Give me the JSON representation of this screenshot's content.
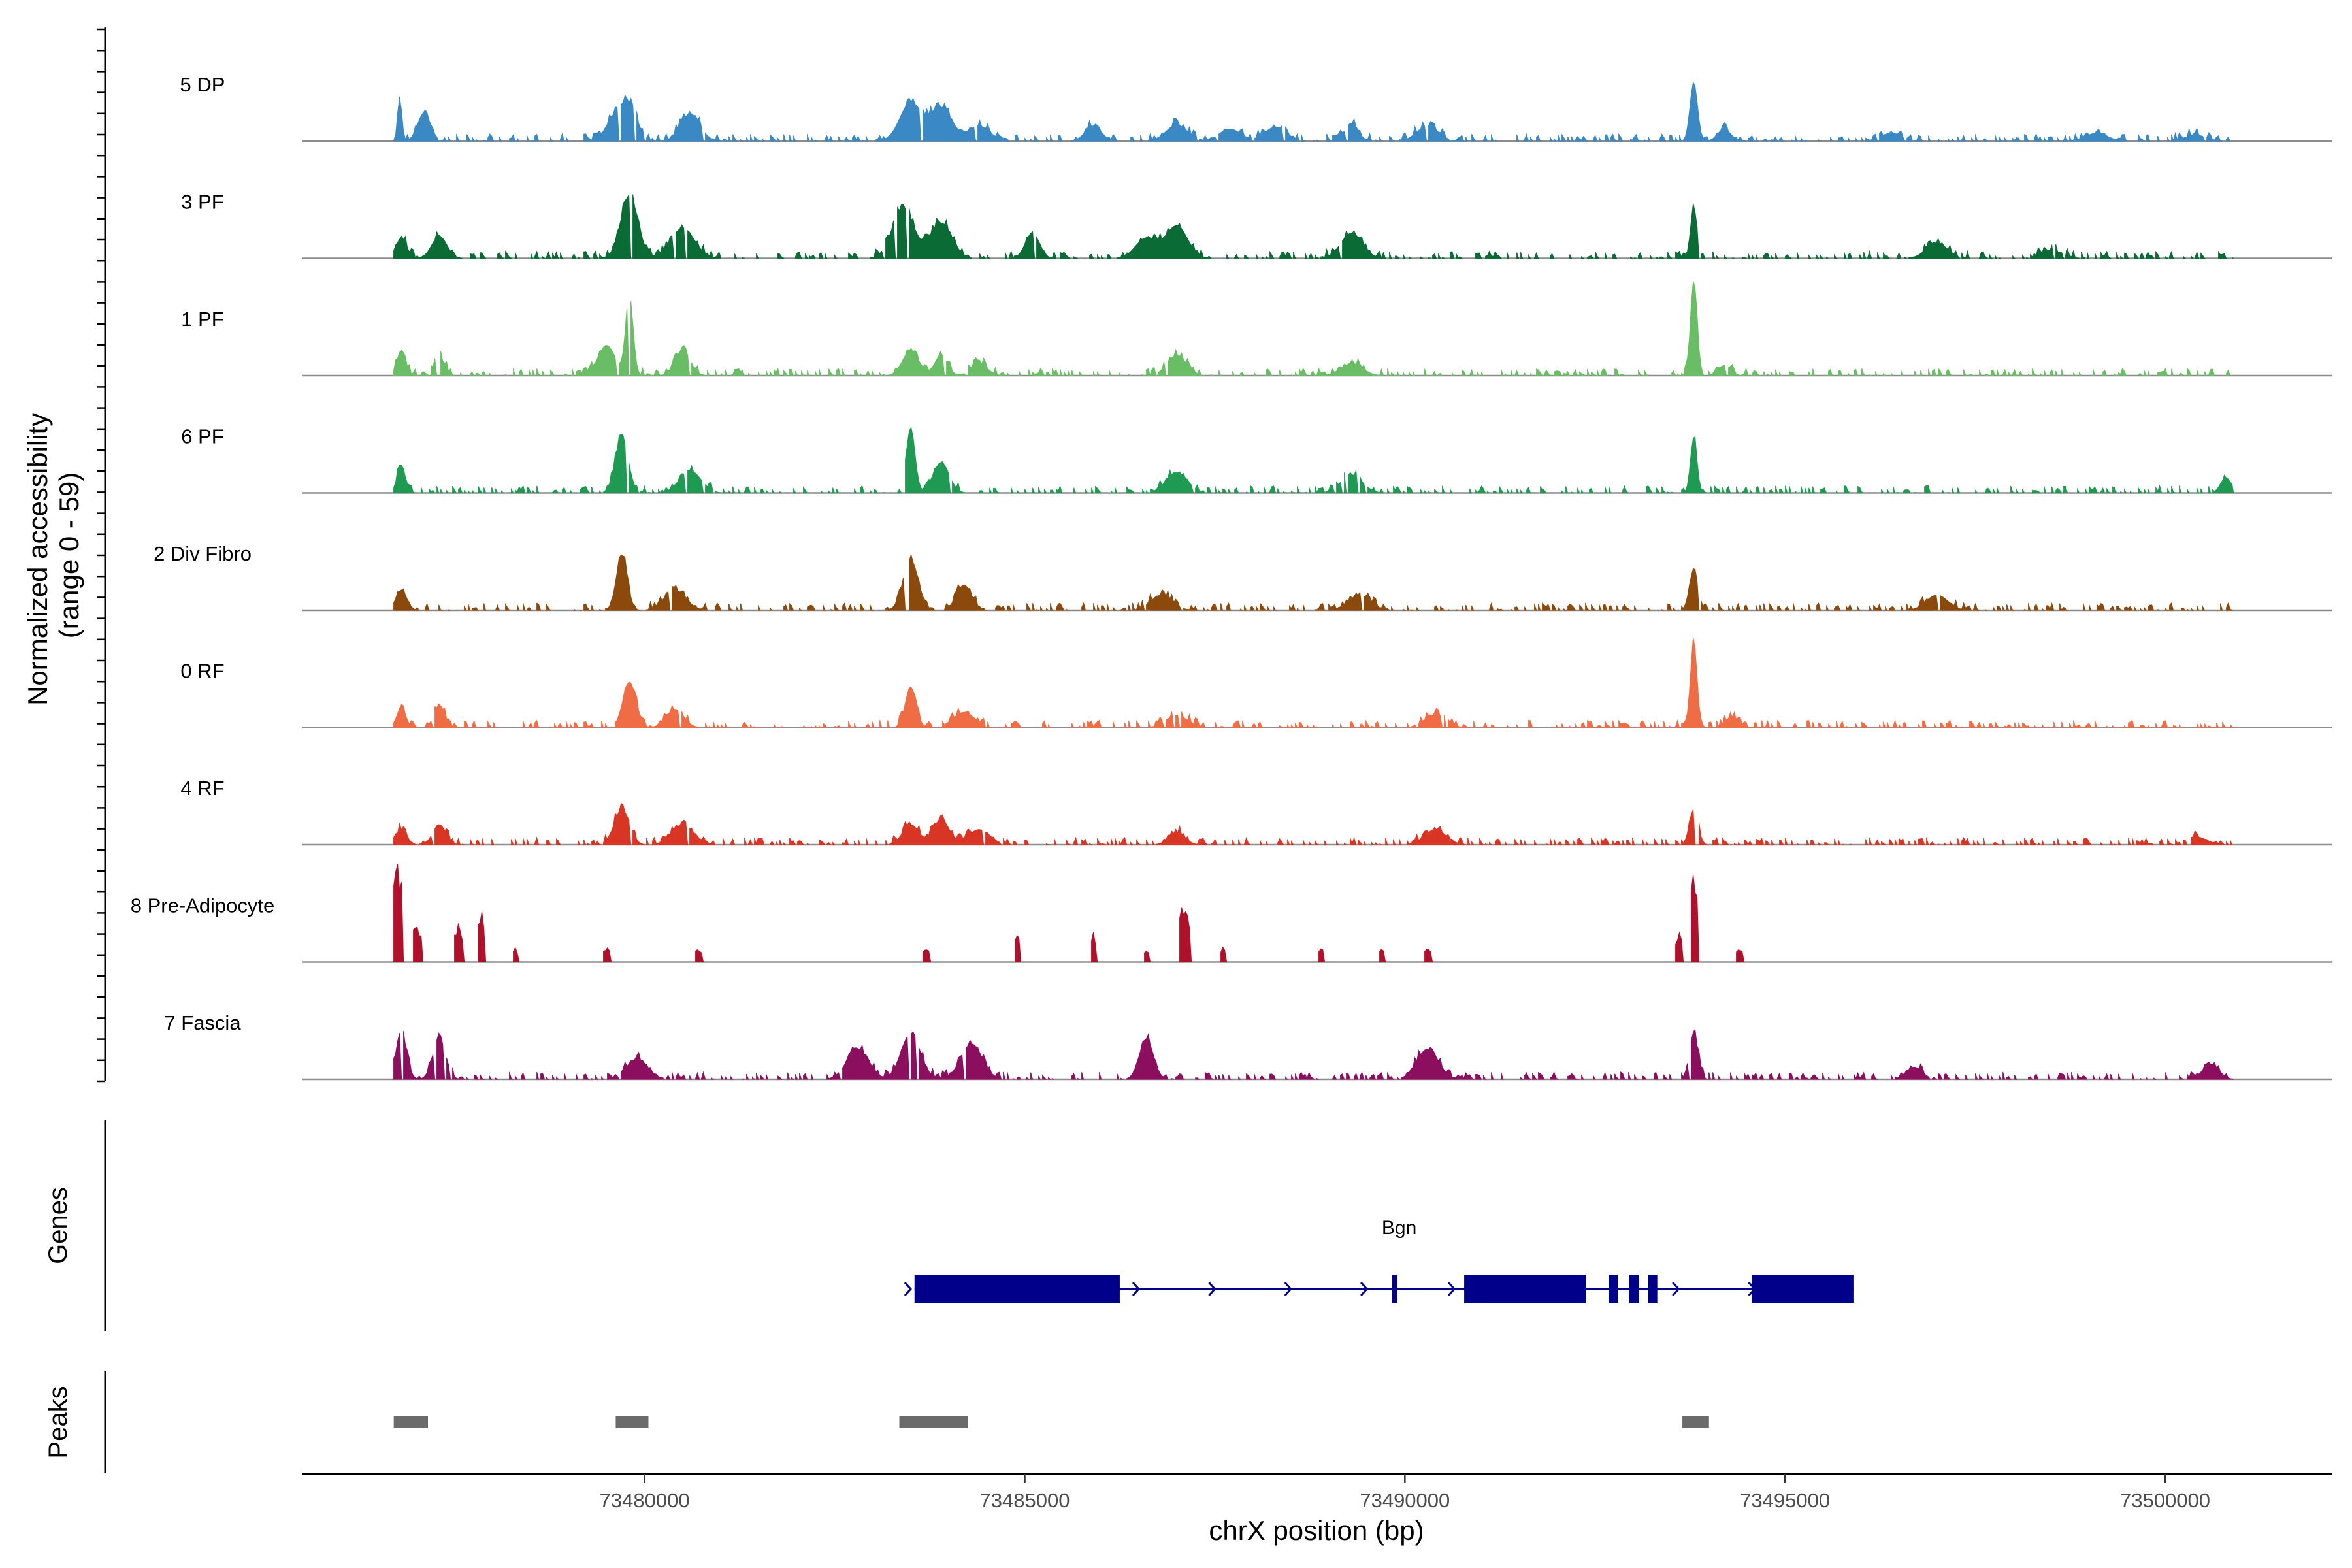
{
  "chart_data": {
    "type": "area",
    "title": "",
    "ylabel": "Normalized accessibility",
    "ylabel_range": "(range 0 - 59)",
    "ylim": [
      0,
      59
    ],
    "xlabel": "chrX position (bp)",
    "xlim": [
      73475500,
      73502200
    ],
    "xticks": [
      73480000,
      73485000,
      73490000,
      73495000,
      73500000
    ],
    "tick_labels": [
      "73480000",
      "73485000",
      "73490000",
      "73495000",
      "73500000"
    ],
    "region": {
      "start": 73476700,
      "end": 73500900
    },
    "tracks": [
      {
        "name": "5 DP",
        "color": "#3a89c4",
        "sparse": false,
        "peaks": [
          [
            73476780,
            0.42,
            40
          ],
          [
            73477100,
            0.28,
            120
          ],
          [
            73479600,
            0.22,
            160
          ],
          [
            73479800,
            0.33,
            150
          ],
          [
            73480600,
            0.27,
            180
          ],
          [
            73483500,
            0.38,
            200
          ],
          [
            73483900,
            0.33,
            200
          ],
          [
            73484400,
            0.15,
            200
          ],
          [
            73485900,
            0.15,
            150
          ],
          [
            73487000,
            0.16,
            200
          ],
          [
            73487700,
            0.12,
            200
          ],
          [
            73488300,
            0.14,
            200
          ],
          [
            73489300,
            0.18,
            120
          ],
          [
            73490300,
            0.15,
            200
          ],
          [
            73493800,
            0.58,
            70
          ],
          [
            73494200,
            0.12,
            120
          ],
          [
            73496400,
            0.08,
            200
          ],
          [
            73499100,
            0.08,
            200
          ],
          [
            73500400,
            0.06,
            200
          ]
        ]
      },
      {
        "name": "3 PF",
        "color": "#0b6b34",
        "sparse": false,
        "peaks": [
          [
            73476800,
            0.2,
            100
          ],
          [
            73477300,
            0.22,
            140
          ],
          [
            73479800,
            0.62,
            160
          ],
          [
            73480500,
            0.3,
            220
          ],
          [
            73483400,
            0.5,
            200
          ],
          [
            73483900,
            0.35,
            200
          ],
          [
            73485100,
            0.25,
            130
          ],
          [
            73486600,
            0.2,
            200
          ],
          [
            73487000,
            0.32,
            200
          ],
          [
            73489300,
            0.25,
            200
          ],
          [
            73493800,
            0.5,
            60
          ],
          [
            73497000,
            0.15,
            200
          ],
          [
            73498500,
            0.08,
            200
          ]
        ]
      },
      {
        "name": "1 PF",
        "color": "#69be65",
        "sparse": false,
        "peaks": [
          [
            73476800,
            0.25,
            80
          ],
          [
            73477300,
            0.18,
            100
          ],
          [
            73479500,
            0.3,
            160
          ],
          [
            73479800,
            0.78,
            70
          ],
          [
            73480500,
            0.25,
            140
          ],
          [
            73483500,
            0.25,
            150
          ],
          [
            73483900,
            0.2,
            120
          ],
          [
            73484400,
            0.12,
            150
          ],
          [
            73487000,
            0.2,
            180
          ],
          [
            73489300,
            0.12,
            200
          ],
          [
            73493800,
            0.95,
            60
          ],
          [
            73494200,
            0.1,
            120
          ]
        ]
      },
      {
        "name": "6 PF",
        "color": "#1e9a52",
        "sparse": false,
        "peaks": [
          [
            73476800,
            0.25,
            80
          ],
          [
            73479700,
            0.55,
            120
          ],
          [
            73480600,
            0.22,
            200
          ],
          [
            73483500,
            0.65,
            80
          ],
          [
            73483900,
            0.3,
            150
          ],
          [
            73487000,
            0.2,
            200
          ],
          [
            73489300,
            0.18,
            200
          ],
          [
            73493800,
            0.55,
            60
          ],
          [
            73500800,
            0.15,
            100
          ]
        ]
      },
      {
        "name": "2 Div Fibro",
        "color": "#8b4a0c",
        "sparse": false,
        "peaks": [
          [
            73476800,
            0.2,
            100
          ],
          [
            73479700,
            0.55,
            100
          ],
          [
            73480400,
            0.2,
            200
          ],
          [
            73483500,
            0.5,
            140
          ],
          [
            73484200,
            0.25,
            140
          ],
          [
            73486800,
            0.15,
            200
          ],
          [
            73489400,
            0.15,
            200
          ],
          [
            73493800,
            0.4,
            80
          ],
          [
            73497000,
            0.15,
            200
          ]
        ]
      },
      {
        "name": "0 RF",
        "color": "#f06c45",
        "sparse": false,
        "peaks": [
          [
            73476800,
            0.2,
            80
          ],
          [
            73477300,
            0.22,
            100
          ],
          [
            73479800,
            0.45,
            120
          ],
          [
            73480400,
            0.18,
            160
          ],
          [
            73483500,
            0.4,
            100
          ],
          [
            73484200,
            0.15,
            200
          ],
          [
            73487000,
            0.12,
            200
          ],
          [
            73490400,
            0.12,
            200
          ],
          [
            73493800,
            0.85,
            60
          ],
          [
            73494300,
            0.1,
            120
          ]
        ]
      },
      {
        "name": "4 RF",
        "color": "#d93524",
        "sparse": false,
        "peaks": [
          [
            73476800,
            0.15,
            100
          ],
          [
            73477300,
            0.2,
            120
          ],
          [
            73479700,
            0.35,
            140
          ],
          [
            73480500,
            0.2,
            200
          ],
          [
            73483500,
            0.2,
            150
          ],
          [
            73483900,
            0.25,
            150
          ],
          [
            73484400,
            0.15,
            200
          ],
          [
            73487000,
            0.12,
            150
          ],
          [
            73490400,
            0.15,
            200
          ],
          [
            73493800,
            0.35,
            80
          ],
          [
            73500400,
            0.08,
            200
          ]
        ]
      },
      {
        "name": "8 Pre-Adipocyte",
        "color": "#b0102a",
        "sparse": true,
        "peaks": [
          [
            73476750,
            1.0,
            70
          ],
          [
            73477000,
            0.4,
            60
          ],
          [
            73477550,
            0.4,
            60
          ],
          [
            73477850,
            0.55,
            50
          ],
          [
            73478300,
            0.15,
            40
          ],
          [
            73479500,
            0.15,
            50
          ],
          [
            73480700,
            0.15,
            50
          ],
          [
            73483700,
            0.15,
            50
          ],
          [
            73484900,
            0.3,
            40
          ],
          [
            73485900,
            0.3,
            40
          ],
          [
            73486600,
            0.15,
            40
          ],
          [
            73487100,
            0.6,
            70
          ],
          [
            73487600,
            0.15,
            40
          ],
          [
            73488900,
            0.15,
            40
          ],
          [
            73489700,
            0.15,
            40
          ],
          [
            73490300,
            0.15,
            40
          ],
          [
            73493600,
            0.3,
            50
          ],
          [
            73493800,
            1.0,
            50
          ],
          [
            73494400,
            0.15,
            40
          ]
        ]
      },
      {
        "name": "7 Fascia",
        "color": "#8b0f5e",
        "sparse": false,
        "peaks": [
          [
            73476800,
            0.45,
            100
          ],
          [
            73477300,
            0.4,
            120
          ],
          [
            73479900,
            0.2,
            200
          ],
          [
            73482800,
            0.3,
            200
          ],
          [
            73483500,
            0.45,
            180
          ],
          [
            73484300,
            0.35,
            200
          ],
          [
            73486600,
            0.4,
            130
          ],
          [
            73490300,
            0.3,
            200
          ],
          [
            73493800,
            0.45,
            80
          ],
          [
            73496700,
            0.12,
            150
          ],
          [
            73500600,
            0.15,
            150
          ]
        ]
      }
    ],
    "gene": {
      "name": "Bgn",
      "strand": "+",
      "start": 73483550,
      "end": 73495900,
      "exons": [
        [
          73483550,
          73486250
        ],
        [
          73489830,
          73489900
        ],
        [
          73490780,
          73492380
        ],
        [
          73492680,
          73492800
        ],
        [
          73492950,
          73493080
        ],
        [
          73493200,
          73493320
        ],
        [
          73494560,
          73495900
        ]
      ],
      "arrows": [
        73483500,
        73486500,
        73487500,
        73488500,
        73489500,
        73490650,
        73493600,
        73494600
      ]
    },
    "peaks_track": [
      [
        73476700,
        73477150
      ],
      [
        73479620,
        73480050
      ],
      [
        73483350,
        73484250
      ],
      [
        73493650,
        73494000
      ]
    ],
    "panels": {
      "genes": "Genes",
      "peaks": "Peaks"
    }
  }
}
